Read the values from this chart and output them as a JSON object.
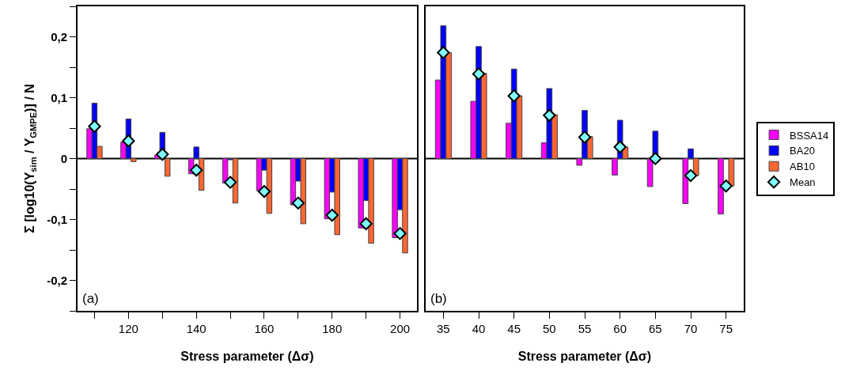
{
  "chart_data": [
    {
      "type": "bar",
      "xlabel": "Stress parameter (Δσ)",
      "ylabel": "Σ [log10(Y$_{sim}$ / Y$_{GMPE}$)] / N",
      "categories": [
        null,
        "120",
        null,
        "140",
        null,
        "160",
        null,
        "180",
        null,
        "200"
      ],
      "ylim": [
        -0.25,
        0.25
      ],
      "yticks": [
        {
          "value": -0.25,
          "label": null
        },
        {
          "value": -0.2,
          "label": "-0,2"
        },
        {
          "value": -0.15,
          "label": null
        },
        {
          "value": -0.1,
          "label": "-0,1"
        },
        {
          "value": -0.05,
          "label": null
        },
        0,
        {
          "value": 0.05,
          "label": null
        },
        {
          "value": 0.1,
          "label": "0,1"
        },
        {
          "value": 0.15,
          "label": null
        },
        {
          "value": 0.2,
          "label": "0,2"
        },
        {
          "value": 0.25,
          "label": null
        }
      ],
      "grid": false,
      "legend": false,
      "annotations": [
        "(a)"
      ],
      "ref_lines": [
        {
          "axis": "y",
          "value": 0,
          "color": "#000000"
        }
      ],
      "series": [
        {
          "color": "#ff00ff",
          "values": [
            0.049,
            0.027,
            0.006,
            -0.025,
            -0.04,
            -0.053,
            -0.076,
            -0.099,
            -0.114,
            -0.13
          ]
        },
        {
          "color": "#0000ff",
          "values": [
            0.091,
            0.065,
            0.043,
            0.019,
            -0.002,
            -0.019,
            -0.037,
            -0.055,
            -0.069,
            -0.084
          ]
        },
        {
          "color": "#ff6633",
          "values": [
            0.02,
            -0.005,
            -0.029,
            -0.052,
            -0.073,
            -0.09,
            -0.107,
            -0.125,
            -0.139,
            -0.155
          ]
        },
        {
          "type": "scatter",
          "marker": "diamond",
          "color": "#80ffff",
          "values": [
            0.053,
            0.029,
            0.007,
            -0.019,
            -0.039,
            -0.054,
            -0.073,
            -0.093,
            -0.107,
            -0.123
          ]
        }
      ]
    },
    {
      "type": "bar",
      "xlabel": "Stress parameter (Δσ)",
      "categories": [
        "35",
        "40",
        "45",
        "50",
        "55",
        "60",
        "65",
        "70",
        "75"
      ],
      "ylim": [
        -0.25,
        0.25
      ],
      "yticks": [
        -0.25,
        -0.2,
        -0.15,
        -0.1,
        -0.05,
        0,
        0.05,
        0.1,
        0.15,
        0.2,
        0.25
      ],
      "tick_labels": "x",
      "grid": false,
      "legend": "right",
      "annotations": [
        "(b)"
      ],
      "ref_lines": [
        {
          "axis": "y",
          "value": 0,
          "color": "#000000"
        }
      ],
      "series": [
        {
          "name": "BSSA14",
          "color": "#ff00ff",
          "values": [
            0.129,
            0.094,
            0.058,
            0.026,
            -0.011,
            -0.027,
            -0.046,
            -0.074,
            -0.091
          ]
        },
        {
          "name": "BA20",
          "color": "#0000ff",
          "values": [
            0.218,
            0.184,
            0.147,
            0.115,
            0.079,
            0.063,
            0.045,
            0.016,
            null
          ]
        },
        {
          "name": "AB10",
          "color": "#ff6633",
          "values": [
            0.174,
            0.14,
            0.103,
            0.072,
            0.036,
            0.019,
            null,
            -0.028,
            -0.045
          ]
        },
        {
          "name": "Mean",
          "type": "scatter",
          "marker": "diamond",
          "color": "#80ffff",
          "values": [
            0.174,
            0.139,
            0.103,
            0.071,
            0.035,
            0.019,
            0,
            -0.028,
            -0.045
          ]
        }
      ]
    }
  ]
}
